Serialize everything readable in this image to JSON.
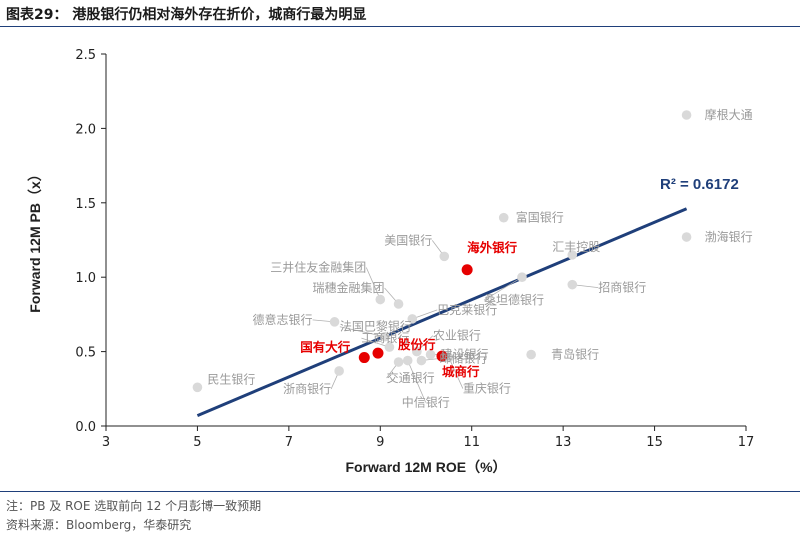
{
  "header": {
    "title": "图表29： 港股银行仍相对海外存在折价，城商行最为明显"
  },
  "footer": {
    "note": "注：PB 及 ROE 选取前向 12 个月彭博一致预期",
    "source": "资料来源：Bloomberg，华泰研究"
  },
  "chart_data": {
    "type": "scatter",
    "xlabel": "Forward 12M ROE（%）",
    "ylabel": "Forward 12M PB（x）",
    "xlim": [
      3,
      17
    ],
    "ylim": [
      0.0,
      2.5
    ],
    "xticks": [
      3,
      5,
      7,
      9,
      11,
      13,
      15,
      17
    ],
    "yticks": [
      0.0,
      0.5,
      1.0,
      1.5,
      2.0,
      2.5
    ],
    "xtick_labels": [
      "3",
      "5",
      "7",
      "9",
      "11",
      "13",
      "15",
      "17"
    ],
    "ytick_labels": [
      "0.0",
      "0.5",
      "1.0",
      "1.5",
      "2.0",
      "2.5"
    ],
    "grid": false,
    "colors": {
      "point": "#d9d9d9",
      "highlight": "#e60000",
      "trend": "#1f3f7a",
      "leader": "#b0b0b0"
    },
    "points": [
      {
        "label": "民生银行",
        "x": 5.0,
        "y": 0.26,
        "highlight": false
      },
      {
        "label": "浙商银行",
        "x": 8.1,
        "y": 0.37,
        "highlight": false
      },
      {
        "label": "德意志银行",
        "x": 8.0,
        "y": 0.7,
        "highlight": false
      },
      {
        "label": "三井住友金融集团",
        "x": 9.0,
        "y": 0.85,
        "highlight": false
      },
      {
        "label": "瑞穗金融集团",
        "x": 9.4,
        "y": 0.82,
        "highlight": false
      },
      {
        "label": "法国巴黎银行",
        "x": 9.1,
        "y": 0.6,
        "highlight": false
      },
      {
        "label": "巴克莱银行",
        "x": 9.7,
        "y": 0.72,
        "highlight": false
      },
      {
        "label": "美国银行",
        "x": 10.4,
        "y": 1.14,
        "highlight": false
      },
      {
        "label": "工商银行",
        "x": 9.2,
        "y": 0.53,
        "highlight": false
      },
      {
        "label": "农业银行",
        "x": 9.8,
        "y": 0.5,
        "highlight": false
      },
      {
        "label": "邮储银行",
        "x": 9.9,
        "y": 0.44,
        "highlight": false
      },
      {
        "label": "建设银行",
        "x": 10.1,
        "y": 0.48,
        "highlight": false
      },
      {
        "label": "交通银行",
        "x": 9.4,
        "y": 0.43,
        "highlight": false
      },
      {
        "label": "中信银行",
        "x": 9.6,
        "y": 0.44,
        "highlight": false
      },
      {
        "label": "重庆银行",
        "x": 10.5,
        "y": 0.46,
        "highlight": false
      },
      {
        "label": "富国银行",
        "x": 11.7,
        "y": 1.4,
        "highlight": false
      },
      {
        "label": "桑坦德银行",
        "x": 12.1,
        "y": 1.0,
        "highlight": false
      },
      {
        "label": "汇丰控股",
        "x": 13.2,
        "y": 1.15,
        "highlight": false
      },
      {
        "label": "招商银行",
        "x": 13.2,
        "y": 0.95,
        "highlight": false
      },
      {
        "label": "青岛银行",
        "x": 12.3,
        "y": 0.48,
        "highlight": false
      },
      {
        "label": "摩根大通",
        "x": 15.7,
        "y": 2.09,
        "highlight": false
      },
      {
        "label": "渤海银行",
        "x": 15.7,
        "y": 1.27,
        "highlight": false
      },
      {
        "label": "海外银行",
        "x": 10.9,
        "y": 1.05,
        "highlight": true
      },
      {
        "label": "国有大行",
        "x": 8.65,
        "y": 0.46,
        "highlight": true
      },
      {
        "label": "股份行",
        "x": 8.95,
        "y": 0.49,
        "highlight": true
      },
      {
        "label": "城商行",
        "x": 10.35,
        "y": 0.47,
        "highlight": true
      }
    ],
    "trendline": {
      "x": [
        5.0,
        15.7
      ],
      "y": [
        0.07,
        1.46
      ]
    },
    "annotation": "R² = 0.6172"
  }
}
